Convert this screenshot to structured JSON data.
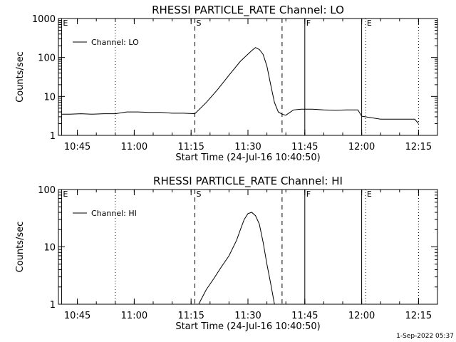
{
  "footer_date": "1-Sep-2022 05:37",
  "chart_data": [
    {
      "type": "line",
      "title": "RHESSI PARTICLE_RATE Channel: LO",
      "xlabel": "Start Time (24-Jul-16 10:40:50)",
      "ylabel": "Counts/sec",
      "y_scale": "log",
      "ylim": [
        1,
        1000
      ],
      "xlim_minutes_after_1040": [
        0,
        100
      ],
      "x_tick_labels": [
        "10:45",
        "11:00",
        "11:15",
        "11:30",
        "11:45",
        "12:00",
        "12:15"
      ],
      "y_tick_labels": [
        "1",
        "10",
        "100",
        "1000"
      ],
      "legend": "Channel: LO",
      "legend_position": "top-left",
      "markers": [
        {
          "label": "E",
          "time": "10:40:50",
          "style": "solid"
        },
        {
          "time": "10:55",
          "style": "dotted"
        },
        {
          "label": "S",
          "time": "11:16",
          "style": "dashed"
        },
        {
          "time": "11:39",
          "style": "dashed"
        },
        {
          "label": "F",
          "time": "11:45",
          "style": "solid"
        },
        {
          "time": "12:00",
          "style": "solid"
        },
        {
          "label": "E",
          "time": "12:01",
          "style": "dotted"
        },
        {
          "time": "12:15",
          "style": "dotted"
        }
      ],
      "series": [
        {
          "name": "Channel: LO",
          "time": [
            "10:40:50",
            "10:43",
            "10:46",
            "10:49",
            "10:52",
            "10:55",
            "10:58",
            "11:01",
            "11:04",
            "11:07",
            "11:10",
            "11:13",
            "11:16",
            "11:19",
            "11:22",
            "11:25",
            "11:28",
            "11:31",
            "11:32",
            "11:33",
            "11:34",
            "11:35",
            "11:36",
            "11:37",
            "11:38",
            "11:39",
            "11:40",
            "11:42",
            "11:44",
            "11:47",
            "11:50",
            "11:53",
            "11:56",
            "11:59",
            "12:00",
            "12:02",
            "12:05",
            "12:08",
            "12:11",
            "12:14",
            "12:15"
          ],
          "values": [
            3.5,
            3.5,
            3.6,
            3.5,
            3.6,
            3.6,
            4.0,
            4.0,
            3.9,
            3.9,
            3.7,
            3.7,
            3.6,
            7,
            15,
            35,
            80,
            150,
            180,
            160,
            120,
            60,
            20,
            7,
            4,
            3.5,
            3.3,
            4.5,
            4.7,
            4.7,
            4.5,
            4.4,
            4.5,
            4.5,
            3.1,
            2.9,
            2.6,
            2.6,
            2.6,
            2.6,
            2.0
          ]
        }
      ]
    },
    {
      "type": "line",
      "title": "RHESSI PARTICLE_RATE Channel: HI",
      "xlabel": "Start Time (24-Jul-16 10:40:50)",
      "ylabel": "Counts/sec",
      "y_scale": "log",
      "ylim": [
        1,
        100
      ],
      "xlim_minutes_after_1040": [
        0,
        100
      ],
      "x_tick_labels": [
        "10:45",
        "11:00",
        "11:15",
        "11:30",
        "11:45",
        "12:00",
        "12:15"
      ],
      "y_tick_labels": [
        "1",
        "10",
        "100"
      ],
      "legend": "Channel: HI",
      "legend_position": "top-left",
      "markers": [
        {
          "label": "E",
          "time": "10:40:50",
          "style": "solid"
        },
        {
          "time": "10:55",
          "style": "dotted"
        },
        {
          "label": "S",
          "time": "11:16",
          "style": "dashed"
        },
        {
          "time": "11:39",
          "style": "dashed"
        },
        {
          "label": "F",
          "time": "11:45",
          "style": "solid"
        },
        {
          "time": "12:00",
          "style": "solid"
        },
        {
          "label": "E",
          "time": "12:01",
          "style": "dotted"
        },
        {
          "time": "12:15",
          "style": "dotted"
        }
      ],
      "series": [
        {
          "name": "Channel: HI",
          "time": [
            "11:17",
            "11:19",
            "11:21",
            "11:23",
            "11:25",
            "11:27",
            "11:28",
            "11:29",
            "11:30",
            "11:31",
            "11:32",
            "11:33",
            "11:34",
            "11:35",
            "11:36",
            "11:37"
          ],
          "values": [
            1.0,
            1.8,
            2.8,
            4.5,
            7,
            13,
            20,
            30,
            38,
            40,
            35,
            25,
            12,
            5,
            2.3,
            1.0
          ]
        }
      ]
    }
  ]
}
